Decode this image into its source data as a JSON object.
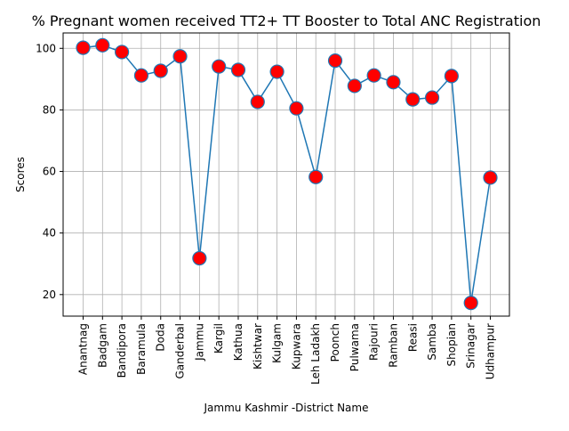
{
  "chart_data": {
    "type": "line",
    "title": "% Pregnant women received TT2+ TT Booster to Total ANC Registration",
    "xlabel": "Jammu Kashmir -District Name",
    "ylabel": "Scores",
    "categories": [
      "Anantnag",
      "Badgam",
      "Bandipora",
      "Baramula",
      "Doda",
      "Ganderbal",
      "Jammu",
      "Kargil",
      "Kathua",
      "Kishtwar",
      "Kulgam",
      "Kupwara",
      "Leh Ladakh",
      "Poonch",
      "Pulwama",
      "Rajouri",
      "Ramban",
      "Reasi",
      "Samba",
      "Shopian",
      "Srinagar",
      "Udhampur"
    ],
    "values": [
      100.2,
      101.0,
      98.8,
      91.2,
      92.7,
      97.4,
      31.8,
      94.1,
      93.0,
      82.6,
      92.4,
      80.5,
      58.2,
      96.0,
      87.8,
      91.2,
      89.0,
      83.4,
      84.0,
      91.0,
      17.3,
      58.0
    ],
    "ylim": [
      13,
      105
    ],
    "yticks": [
      20,
      40,
      60,
      80,
      100
    ],
    "grid": true,
    "line_color": "#1f77b4",
    "marker_color": "#ff0000",
    "marker_edge_color": "#1f77b4"
  }
}
